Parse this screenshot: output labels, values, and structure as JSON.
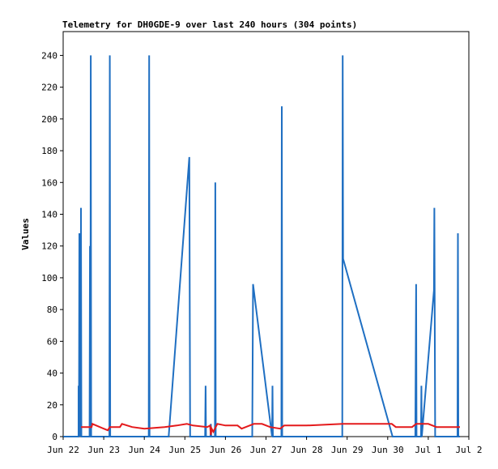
{
  "chart_data": {
    "type": "line",
    "title": "Telemetry for DH0GDE-9 over last 240 hours (304 points)",
    "xlabel": "",
    "ylabel": "Values",
    "xlim": [
      0,
      10
    ],
    "ylim": [
      0,
      255
    ],
    "x_unit": "days from Jun 22 00:00",
    "x_ticks": [
      {
        "x": 0,
        "label": "Jun 22"
      },
      {
        "x": 1,
        "label": "Jun 23"
      },
      {
        "x": 2,
        "label": "Jun 24"
      },
      {
        "x": 3,
        "label": "Jun 25"
      },
      {
        "x": 4,
        "label": "Jun 26"
      },
      {
        "x": 5,
        "label": "Jun 27"
      },
      {
        "x": 6,
        "label": "Jun 28"
      },
      {
        "x": 7,
        "label": "Jun 29"
      },
      {
        "x": 8,
        "label": "Jun 30"
      },
      {
        "x": 9,
        "label": "Jul 1"
      },
      {
        "x": 10,
        "label": "Jul 2"
      }
    ],
    "y_ticks": [
      0,
      20,
      40,
      60,
      80,
      100,
      120,
      140,
      160,
      180,
      200,
      220,
      240
    ],
    "grid": false,
    "series": [
      {
        "color": "#1f6fc2",
        "points": [
          [
            0.0,
            0
          ],
          [
            0.38,
            0
          ],
          [
            0.38,
            32
          ],
          [
            0.39,
            0
          ],
          [
            0.4,
            128
          ],
          [
            0.41,
            0
          ],
          [
            0.42,
            72
          ],
          [
            0.43,
            0
          ],
          [
            0.44,
            144
          ],
          [
            0.45,
            0
          ],
          [
            0.65,
            0
          ],
          [
            0.66,
            120
          ],
          [
            0.67,
            0
          ],
          [
            0.68,
            240
          ],
          [
            0.69,
            0
          ],
          [
            1.14,
            0
          ],
          [
            1.15,
            240
          ],
          [
            1.16,
            0
          ],
          [
            2.11,
            0
          ],
          [
            2.12,
            240
          ],
          [
            2.13,
            0
          ],
          [
            2.6,
            0
          ],
          [
            3.11,
            176
          ],
          [
            3.13,
            0
          ],
          [
            3.5,
            0
          ],
          [
            3.51,
            32
          ],
          [
            3.52,
            0
          ],
          [
            3.63,
            0
          ],
          [
            3.64,
            8
          ],
          [
            3.65,
            0
          ],
          [
            3.74,
            0
          ],
          [
            3.75,
            160
          ],
          [
            3.76,
            0
          ],
          [
            4.66,
            0
          ],
          [
            4.68,
            96
          ],
          [
            5.15,
            0
          ],
          [
            5.16,
            32
          ],
          [
            5.17,
            0
          ],
          [
            5.38,
            0
          ],
          [
            5.39,
            208
          ],
          [
            5.4,
            0
          ],
          [
            6.88,
            0
          ],
          [
            6.89,
            240
          ],
          [
            6.9,
            112
          ],
          [
            8.12,
            0
          ],
          [
            8.68,
            0
          ],
          [
            8.69,
            48
          ],
          [
            8.7,
            96
          ],
          [
            8.71,
            0
          ],
          [
            8.82,
            0
          ],
          [
            8.83,
            32
          ],
          [
            8.84,
            0
          ],
          [
            9.14,
            92
          ],
          [
            9.15,
            144
          ],
          [
            9.16,
            72
          ],
          [
            9.17,
            0
          ],
          [
            9.72,
            0
          ],
          [
            9.73,
            128
          ],
          [
            9.74,
            0
          ],
          [
            9.78,
            0
          ]
        ]
      },
      {
        "color": "#e41a1c",
        "points": [
          [
            0.44,
            6
          ],
          [
            0.7,
            6
          ],
          [
            0.72,
            8
          ],
          [
            1.0,
            5
          ],
          [
            1.1,
            4
          ],
          [
            1.15,
            6
          ],
          [
            1.4,
            6
          ],
          [
            1.45,
            8
          ],
          [
            1.7,
            6
          ],
          [
            2.0,
            5
          ],
          [
            2.5,
            6
          ],
          [
            2.8,
            7
          ],
          [
            3.05,
            8
          ],
          [
            3.2,
            7
          ],
          [
            3.55,
            6
          ],
          [
            3.62,
            7
          ],
          [
            3.64,
            1
          ],
          [
            3.66,
            5
          ],
          [
            3.7,
            3
          ],
          [
            3.8,
            8
          ],
          [
            4.0,
            7
          ],
          [
            4.3,
            7
          ],
          [
            4.4,
            5
          ],
          [
            4.5,
            6
          ],
          [
            4.7,
            8
          ],
          [
            4.9,
            8
          ],
          [
            5.1,
            6
          ],
          [
            5.35,
            5
          ],
          [
            5.45,
            7
          ],
          [
            6.0,
            7
          ],
          [
            6.9,
            8
          ],
          [
            8.1,
            8
          ],
          [
            8.2,
            6
          ],
          [
            8.6,
            6
          ],
          [
            8.7,
            8
          ],
          [
            9.0,
            8
          ],
          [
            9.2,
            6
          ],
          [
            9.7,
            6
          ],
          [
            9.78,
            6
          ]
        ]
      }
    ]
  }
}
